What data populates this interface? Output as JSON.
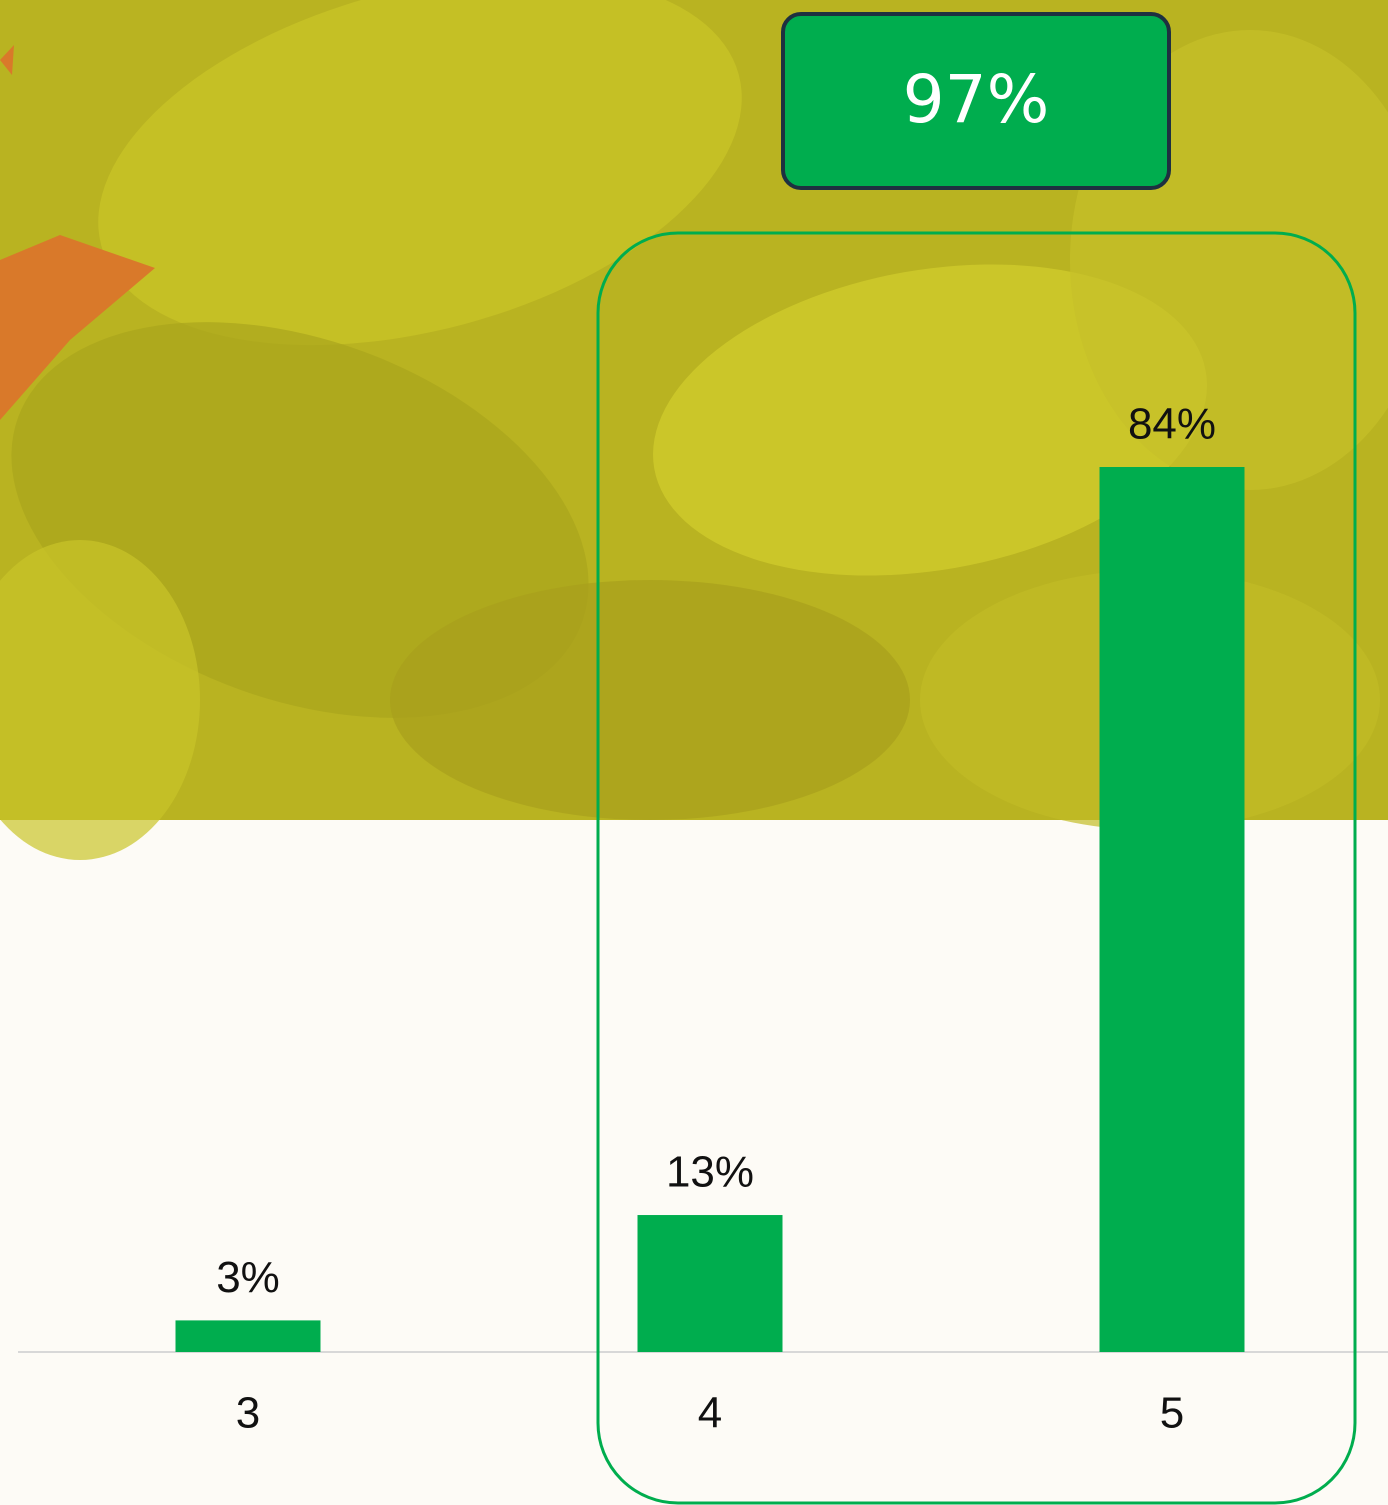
{
  "chart_data": {
    "type": "bar",
    "categories": [
      "3",
      "4",
      "5"
    ],
    "values": [
      3,
      13,
      84
    ],
    "value_labels": [
      "3%",
      "13%",
      "84%"
    ],
    "color": "#00ad4e",
    "annotation": "97%"
  }
}
